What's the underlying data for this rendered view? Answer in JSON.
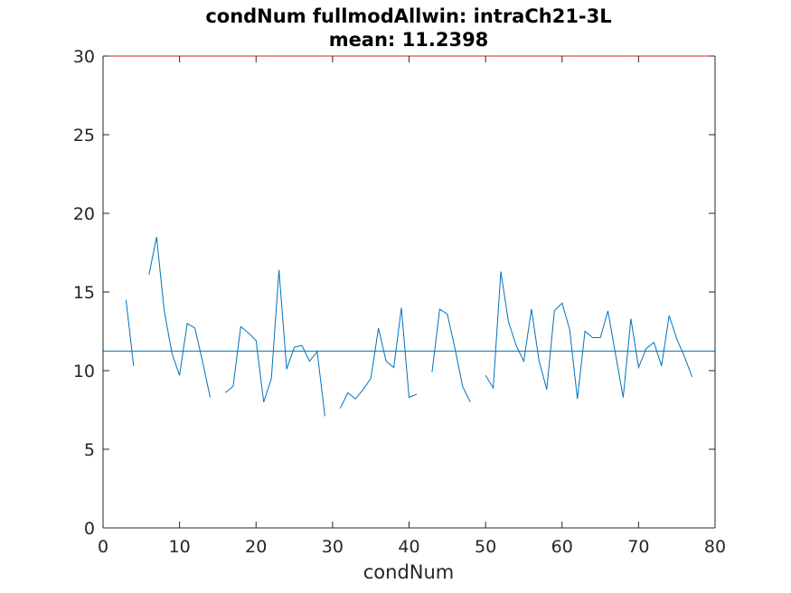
{
  "chart_data": {
    "type": "line",
    "title": "condNum fullmodAllwin: intraCh21-3L",
    "subtitle": "mean: 11.2398",
    "xlabel": "condNum",
    "ylabel": "",
    "xlim": [
      0,
      80
    ],
    "ylim": [
      0,
      30
    ],
    "xticks": [
      0,
      10,
      20,
      30,
      40,
      50,
      60,
      70,
      80
    ],
    "yticks": [
      0,
      5,
      10,
      15,
      20,
      25,
      30
    ],
    "grid": false,
    "mean": 11.2398,
    "threshold": 30,
    "colors": {
      "series": "#0072bd",
      "mean": "#0072bd",
      "threshold": "#d62020",
      "axis": "#262626"
    },
    "series": [
      {
        "x": [
          3,
          4,
          5,
          6,
          7,
          8,
          9,
          10,
          11,
          12,
          13,
          14,
          15,
          16,
          17,
          18,
          19,
          20,
          21,
          22,
          23,
          24,
          25,
          26,
          27,
          28,
          29,
          30,
          31,
          32,
          33,
          34,
          35,
          36,
          37,
          38,
          39,
          40,
          41,
          42,
          43,
          44,
          45,
          46,
          47,
          48,
          49,
          50,
          51,
          52,
          53,
          54,
          55,
          56,
          57,
          58,
          59,
          60,
          61,
          62,
          63,
          64,
          65,
          66,
          67,
          68,
          69,
          70,
          71,
          72,
          73,
          74,
          75,
          76,
          77
        ],
        "y": [
          14.5,
          10.3,
          null,
          16.1,
          18.5,
          13.8,
          11.1,
          9.7,
          13.0,
          12.7,
          10.6,
          8.3,
          null,
          8.6,
          9.0,
          12.8,
          12.4,
          11.9,
          8.0,
          9.5,
          16.4,
          10.1,
          11.5,
          11.6,
          10.6,
          11.2,
          7.1,
          null,
          7.6,
          8.6,
          8.2,
          8.8,
          9.5,
          12.7,
          10.6,
          10.2,
          14.0,
          8.3,
          8.5,
          null,
          9.9,
          13.9,
          13.6,
          11.4,
          9.0,
          8.0,
          null,
          9.7,
          8.9,
          16.3,
          13.1,
          11.6,
          10.6,
          13.9,
          10.6,
          8.8,
          13.8,
          14.3,
          12.6,
          8.2,
          12.5,
          12.1,
          12.1,
          13.8,
          11.0,
          8.3,
          13.3,
          10.2,
          11.4,
          11.8,
          10.3,
          13.5,
          12.0,
          10.9,
          9.6
        ]
      }
    ]
  }
}
